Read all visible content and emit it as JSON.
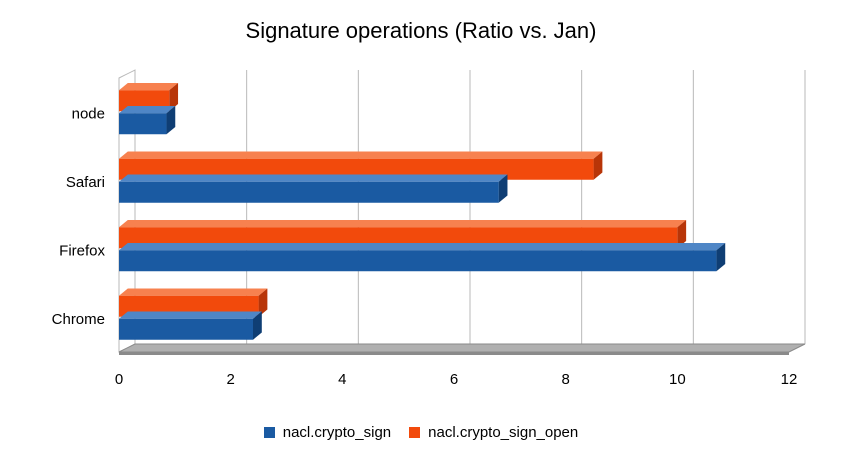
{
  "chart_data": {
    "type": "bar",
    "orientation": "horizontal",
    "style": "3d",
    "title": "Signature operations (Ratio vs. Jan)",
    "xlabel": "",
    "ylabel": "",
    "categories": [
      "Chrome",
      "Firefox",
      "Safari",
      "node"
    ],
    "series": [
      {
        "name": "nacl.crypto_sign",
        "values": [
          2.4,
          10.7,
          6.8,
          0.85
        ]
      },
      {
        "name": "nacl.crypto_sign_open",
        "values": [
          2.5,
          10.0,
          8.5,
          0.9
        ]
      }
    ],
    "xlim": [
      0,
      12
    ],
    "xticks": [
      "0",
      "2",
      "4",
      "6",
      "8",
      "10",
      "12"
    ],
    "grid": true,
    "legend_position": "bottom",
    "colors": {
      "series_0": "#1a5aa2",
      "series_0_top": "#4f86c6",
      "series_0_side": "#0f3e74",
      "series_1": "#f24a0c",
      "series_1_top": "#f7814f",
      "series_1_side": "#b83508",
      "grid": "#b9b9b9",
      "floor": "#b0b0b0",
      "floor_edge": "#8a8a8a"
    }
  }
}
